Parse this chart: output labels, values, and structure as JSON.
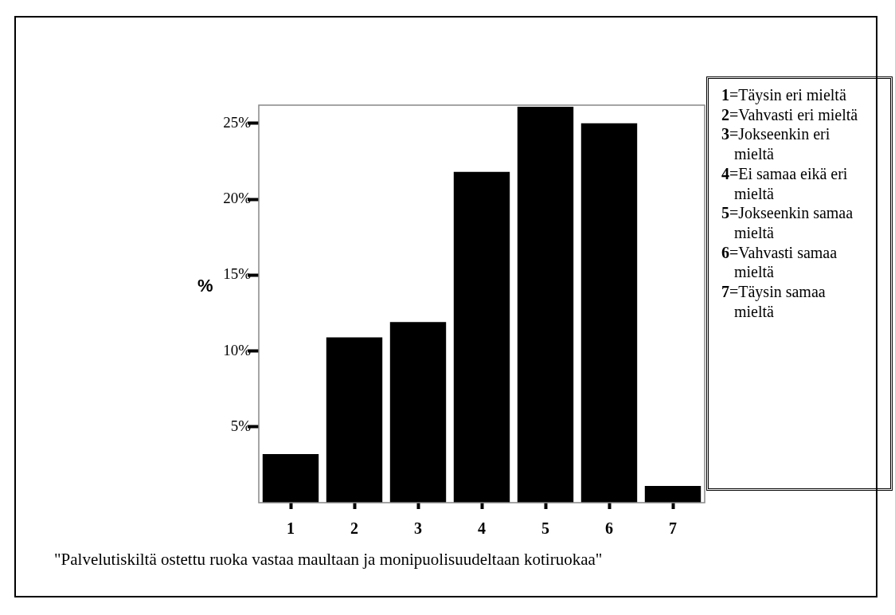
{
  "chart_data": {
    "type": "bar",
    "ylabel": "%",
    "categories": [
      "1",
      "2",
      "3",
      "4",
      "5",
      "6",
      "7"
    ],
    "values": [
      3.2,
      10.9,
      11.9,
      21.8,
      26.1,
      25.0,
      1.1
    ],
    "color": "#000000",
    "ylim": [
      0,
      26.2
    ],
    "yticks": [
      {
        "value": 5,
        "label": "5%"
      },
      {
        "value": 10,
        "label": "10%"
      },
      {
        "value": 15,
        "label": "15%"
      },
      {
        "value": 20,
        "label": "20%"
      },
      {
        "value": 25,
        "label": "25%"
      }
    ],
    "grid": false,
    "annotations": [
      "1=Täysin eri mieltä",
      "2=Vahvasti eri mieltä",
      "3=Jokseenkin eri mieltä",
      "4=Ei samaa eikä eri mieltä",
      "5=Jokseenkin samaa mieltä",
      "6=Vahvasti samaa mieltä",
      "7=Täysin samaa mieltä",
      "\"Palvelutiskiltä ostettu ruoka vastaa maultaan ja monipuolisuudeltaan kotiruokaa\""
    ]
  }
}
